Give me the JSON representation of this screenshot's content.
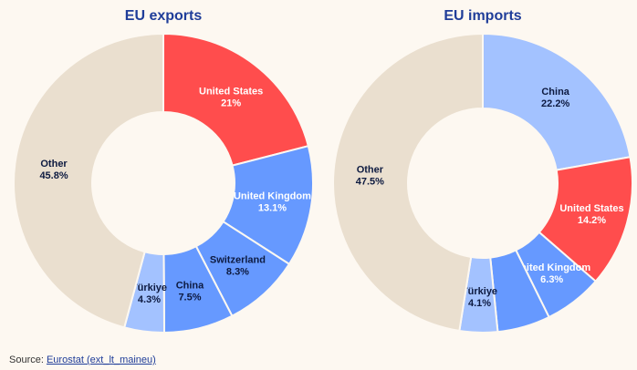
{
  "chart_data": [
    {
      "type": "pie",
      "title": "EU exports",
      "donut": true,
      "slices": [
        {
          "label": "United States",
          "value_label": "21%",
          "value": 21.0,
          "color": "#ff4d4d",
          "text_color": "#ffffff"
        },
        {
          "label": "United Kingdom",
          "value_label": "13.1%",
          "value": 13.1,
          "color": "#6699ff",
          "text_color": "#ffffff"
        },
        {
          "label": "Switzerland",
          "value_label": "8.3%",
          "value": 8.3,
          "color": "#6699ff",
          "text_color": "#0d1a40"
        },
        {
          "label": "China",
          "value_label": "7.5%",
          "value": 7.5,
          "color": "#6699ff",
          "text_color": "#0d1a40"
        },
        {
          "label": "Türkiye",
          "value_label": "4.3%",
          "value": 4.3,
          "color": "#a3c2ff",
          "text_color": "#0d1a40"
        },
        {
          "label": "Other",
          "value_label": "45.8%",
          "value": 45.8,
          "color": "#eadfcf",
          "text_color": "#0d1a40"
        }
      ]
    },
    {
      "type": "pie",
      "title": "EU imports",
      "donut": true,
      "slices": [
        {
          "label": "China",
          "value_label": "22.2%",
          "value": 22.2,
          "color": "#a3c2ff",
          "text_color": "#0d1a40"
        },
        {
          "label": "United States",
          "value_label": "14.2%",
          "value": 14.2,
          "color": "#ff4d4d",
          "text_color": "#ffffff"
        },
        {
          "label": "United Kingdom",
          "value_label": "6.3%",
          "value": 6.3,
          "color": "#6699ff",
          "text_color": "#ffffff"
        },
        {
          "label": "",
          "value_label": "",
          "value": 5.7,
          "color": "#6699ff",
          "text_color": "#0d1a40"
        },
        {
          "label": "Türkiye",
          "value_label": "4.1%",
          "value": 4.1,
          "color": "#a3c2ff",
          "text_color": "#0d1a40"
        },
        {
          "label": "Other",
          "value_label": "47.5%",
          "value": 47.5,
          "color": "#eadfcf",
          "text_color": "#0d1a40"
        }
      ]
    }
  ],
  "source": {
    "prefix": "Source: ",
    "link_text": "Eurostat (ext_lt_maineu)"
  }
}
